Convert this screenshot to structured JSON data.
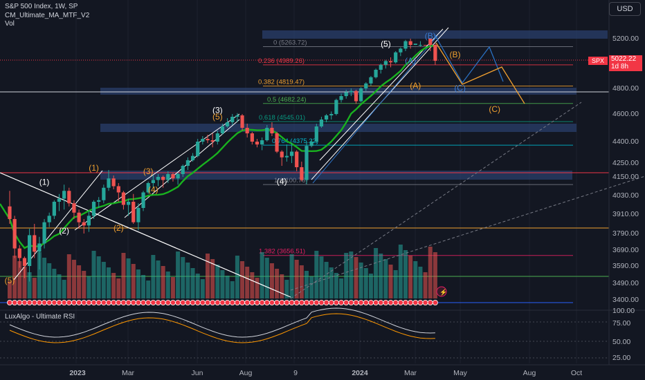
{
  "header": {
    "symbol_line": "S&P 500 Index, 1W, SP",
    "indicator_1": "CM_Ultimate_MA_MTF_V2",
    "indicator_2": "Vol",
    "currency": "USD"
  },
  "rsi_panel": {
    "title": "LuxAlgo - Ultimate RSI"
  },
  "price_tag": {
    "symbol": "SPX",
    "price": "5022.22",
    "countdown": "1d 8h"
  },
  "colors": {
    "background": "#131722",
    "bull": "#26a69a",
    "bear": "#ef5350",
    "ma": "#19b21f",
    "zone": "#2a3f6b",
    "orange": "#f0a030",
    "blue": "#2a6fc0"
  },
  "chart_data": {
    "type": "candlestick",
    "price_axis": {
      "ticks": [
        5200.0,
        5000.0,
        4800.0,
        4600.0,
        4400.0,
        4250.0,
        4150.0,
        4030.0,
        3910.0,
        3790.0,
        3690.0,
        3590.0,
        3490.0,
        3400.0
      ],
      "labels": [
        "5200.00",
        "4800.00",
        "4600.00",
        "4400.00",
        "4250.00",
        "4150.00",
        "4030.00",
        "3910.00",
        "3790.00",
        "3690.00",
        "3590.00",
        "3490.00",
        "3400.00"
      ]
    },
    "time_axis": [
      "2023",
      "Mar",
      "Jun",
      "Aug",
      "9",
      "2024",
      "Mar",
      "May",
      "Aug",
      "Oct"
    ],
    "fib_levels": [
      {
        "label": "0 (5263.72)",
        "value": 5263.72
      },
      {
        "label": "0.236 (4989.26)",
        "value": 4989.26
      },
      {
        "label": "0.382 (4819.47)",
        "value": 4819.47
      },
      {
        "label": "0.5 (4682.24)",
        "value": 4682.24
      },
      {
        "label": "0.618 (4545.01)",
        "value": 4545.01
      },
      {
        "label": "0.764 (4375.22)",
        "value": 4375.22
      },
      {
        "label": "1 (4100.76)",
        "value": 4100.76
      },
      {
        "label": "1.382 (3656.51)",
        "value": 3656.51
      }
    ],
    "wave_labels": [
      {
        "text": "(5)",
        "date": "2022-10-10",
        "price": 3491,
        "color": "orange"
      },
      {
        "text": "(1)",
        "date": "2022-11-28",
        "price": 4100,
        "color": "white"
      },
      {
        "text": "(2)",
        "date": "2022-12-26",
        "price": 3790,
        "color": "white"
      },
      {
        "text": "(1)",
        "date": "2023-02-06",
        "price": 4195,
        "color": "orange"
      },
      {
        "text": "(2)",
        "date": "2023-03-13",
        "price": 3808,
        "color": "orange"
      },
      {
        "text": "(3)",
        "date": "2023-04-24",
        "price": 4170,
        "color": "orange"
      },
      {
        "text": "(4)",
        "date": "2023-05-01",
        "price": 4050,
        "color": "orange"
      },
      {
        "text": "(3)",
        "date": "2023-07-31",
        "price": 4607,
        "color": "white"
      },
      {
        "text": "(5)",
        "date": "2023-07-31",
        "price": 4560,
        "color": "orange"
      },
      {
        "text": "(4)",
        "date": "2023-10-30",
        "price": 4103,
        "color": "white"
      },
      {
        "text": "(5)",
        "date": "2024-03-25",
        "price": 5264,
        "color": "white"
      },
      {
        "text": "(A)",
        "date": "2024-04-29",
        "price": 5000,
        "color": "blue"
      },
      {
        "text": "(B)",
        "date": "2024-05-27",
        "price": 5200,
        "color": "blue"
      },
      {
        "text": "(C)",
        "date": "2024-07-08",
        "price": 4780,
        "color": "blue"
      },
      {
        "text": "(A)",
        "date": "2024-05-06",
        "price": 4800,
        "color": "orange"
      },
      {
        "text": "(B)",
        "date": "2024-07-01",
        "price": 5050,
        "color": "orange"
      },
      {
        "text": "(C)",
        "date": "2024-08-26",
        "price": 4615,
        "color": "orange"
      }
    ],
    "candles": [
      {
        "o": 3960,
        "h": 4060,
        "l": 3850,
        "c": 3880
      },
      {
        "o": 3880,
        "h": 3900,
        "l": 3640,
        "c": 3700
      },
      {
        "o": 3700,
        "h": 3720,
        "l": 3580,
        "c": 3640
      },
      {
        "o": 3640,
        "h": 3650,
        "l": 3520,
        "c": 3590
      },
      {
        "o": 3590,
        "h": 3820,
        "l": 3500,
        "c": 3780
      },
      {
        "o": 3780,
        "h": 3850,
        "l": 3640,
        "c": 3680
      },
      {
        "o": 3680,
        "h": 3770,
        "l": 3570,
        "c": 3730
      },
      {
        "o": 3730,
        "h": 3880,
        "l": 3700,
        "c": 3860
      },
      {
        "o": 3860,
        "h": 3920,
        "l": 3830,
        "c": 3900
      },
      {
        "o": 3900,
        "h": 4000,
        "l": 3880,
        "c": 3990
      },
      {
        "o": 3990,
        "h": 4040,
        "l": 3930,
        "c": 4010
      },
      {
        "o": 4010,
        "h": 4100,
        "l": 3940,
        "c": 4060
      },
      {
        "o": 4060,
        "h": 4080,
        "l": 3960,
        "c": 3980
      },
      {
        "o": 3980,
        "h": 4000,
        "l": 3880,
        "c": 3920
      },
      {
        "o": 3920,
        "h": 3940,
        "l": 3820,
        "c": 3860
      },
      {
        "o": 3860,
        "h": 3880,
        "l": 3790,
        "c": 3840
      },
      {
        "o": 3840,
        "h": 3930,
        "l": 3800,
        "c": 3900
      },
      {
        "o": 3900,
        "h": 4000,
        "l": 3880,
        "c": 3990
      },
      {
        "o": 3990,
        "h": 4020,
        "l": 3950,
        "c": 4000
      },
      {
        "o": 4000,
        "h": 4100,
        "l": 3980,
        "c": 4080
      },
      {
        "o": 4080,
        "h": 4200,
        "l": 4060,
        "c": 4140
      },
      {
        "o": 4140,
        "h": 4160,
        "l": 4070,
        "c": 4090
      },
      {
        "o": 4090,
        "h": 4110,
        "l": 3990,
        "c": 4050
      },
      {
        "o": 4050,
        "h": 4060,
        "l": 3940,
        "c": 3970
      },
      {
        "o": 3970,
        "h": 4010,
        "l": 3900,
        "c": 3990
      },
      {
        "o": 3990,
        "h": 4040,
        "l": 3850,
        "c": 3860
      },
      {
        "o": 3860,
        "h": 3980,
        "l": 3810,
        "c": 3950
      },
      {
        "o": 3950,
        "h": 4060,
        "l": 3930,
        "c": 4050
      },
      {
        "o": 4050,
        "h": 4120,
        "l": 4040,
        "c": 4110
      },
      {
        "o": 4110,
        "h": 4160,
        "l": 4080,
        "c": 4130
      },
      {
        "o": 4130,
        "h": 4170,
        "l": 4090,
        "c": 4150
      },
      {
        "o": 4150,
        "h": 4160,
        "l": 4080,
        "c": 4130
      },
      {
        "o": 4130,
        "h": 4190,
        "l": 4110,
        "c": 4170
      },
      {
        "o": 4170,
        "h": 4180,
        "l": 4120,
        "c": 4140
      },
      {
        "o": 4140,
        "h": 4180,
        "l": 4100,
        "c": 4170
      },
      {
        "o": 4170,
        "h": 4240,
        "l": 4150,
        "c": 4230
      },
      {
        "o": 4230,
        "h": 4290,
        "l": 4200,
        "c": 4270
      },
      {
        "o": 4270,
        "h": 4320,
        "l": 4260,
        "c": 4300
      },
      {
        "o": 4300,
        "h": 4420,
        "l": 4290,
        "c": 4400
      },
      {
        "o": 4400,
        "h": 4440,
        "l": 4380,
        "c": 4420
      },
      {
        "o": 4420,
        "h": 4450,
        "l": 4390,
        "c": 4410
      },
      {
        "o": 4410,
        "h": 4460,
        "l": 4360,
        "c": 4400
      },
      {
        "o": 4400,
        "h": 4480,
        "l": 4380,
        "c": 4460
      },
      {
        "o": 4460,
        "h": 4530,
        "l": 4450,
        "c": 4510
      },
      {
        "o": 4510,
        "h": 4570,
        "l": 4500,
        "c": 4540
      },
      {
        "o": 4540,
        "h": 4600,
        "l": 4520,
        "c": 4580
      },
      {
        "o": 4580,
        "h": 4607,
        "l": 4540,
        "c": 4590
      },
      {
        "o": 4590,
        "h": 4600,
        "l": 4480,
        "c": 4500
      },
      {
        "o": 4500,
        "h": 4530,
        "l": 4430,
        "c": 4460
      },
      {
        "o": 4460,
        "h": 4470,
        "l": 4380,
        "c": 4400
      },
      {
        "o": 4400,
        "h": 4420,
        "l": 4360,
        "c": 4380
      },
      {
        "o": 4380,
        "h": 4430,
        "l": 4340,
        "c": 4410
      },
      {
        "o": 4410,
        "h": 4520,
        "l": 4400,
        "c": 4500
      },
      {
        "o": 4500,
        "h": 4540,
        "l": 4440,
        "c": 4460
      },
      {
        "o": 4460,
        "h": 4470,
        "l": 4320,
        "c": 4330
      },
      {
        "o": 4330,
        "h": 4340,
        "l": 4230,
        "c": 4290
      },
      {
        "o": 4290,
        "h": 4380,
        "l": 4260,
        "c": 4300
      },
      {
        "o": 4300,
        "h": 4390,
        "l": 4250,
        "c": 4330
      },
      {
        "o": 4330,
        "h": 4340,
        "l": 4190,
        "c": 4220
      },
      {
        "o": 4220,
        "h": 4260,
        "l": 4120,
        "c": 4130
      },
      {
        "o": 4130,
        "h": 4400,
        "l": 4103,
        "c": 4370
      },
      {
        "o": 4370,
        "h": 4420,
        "l": 4360,
        "c": 4400
      },
      {
        "o": 4400,
        "h": 4530,
        "l": 4390,
        "c": 4510
      },
      {
        "o": 4510,
        "h": 4580,
        "l": 4500,
        "c": 4560
      },
      {
        "o": 4560,
        "h": 4600,
        "l": 4540,
        "c": 4590
      },
      {
        "o": 4590,
        "h": 4620,
        "l": 4560,
        "c": 4600
      },
      {
        "o": 4600,
        "h": 4720,
        "l": 4590,
        "c": 4710
      },
      {
        "o": 4710,
        "h": 4760,
        "l": 4690,
        "c": 4740
      },
      {
        "o": 4740,
        "h": 4790,
        "l": 4720,
        "c": 4770
      },
      {
        "o": 4770,
        "h": 4800,
        "l": 4740,
        "c": 4780
      },
      {
        "o": 4780,
        "h": 4790,
        "l": 4680,
        "c": 4700
      },
      {
        "o": 4700,
        "h": 4810,
        "l": 4690,
        "c": 4800
      },
      {
        "o": 4800,
        "h": 4850,
        "l": 4780,
        "c": 4840
      },
      {
        "o": 4840,
        "h": 4900,
        "l": 4820,
        "c": 4890
      },
      {
        "o": 4890,
        "h": 4960,
        "l": 4880,
        "c": 4950
      },
      {
        "o": 4950,
        "h": 5000,
        "l": 4920,
        "c": 4990
      },
      {
        "o": 4990,
        "h": 5030,
        "l": 4960,
        "c": 5020
      },
      {
        "o": 5020,
        "h": 5050,
        "l": 4970,
        "c": 5010
      },
      {
        "o": 5010,
        "h": 5100,
        "l": 5000,
        "c": 5090
      },
      {
        "o": 5090,
        "h": 5130,
        "l": 5060,
        "c": 5120
      },
      {
        "o": 5120,
        "h": 5190,
        "l": 5100,
        "c": 5180
      },
      {
        "o": 5180,
        "h": 5200,
        "l": 5120,
        "c": 5150
      },
      {
        "o": 5150,
        "h": 5260,
        "l": 5140,
        "c": 5240
      },
      {
        "o": 5240,
        "h": 5264,
        "l": 5220,
        "c": 5250
      },
      {
        "o": 5250,
        "h": 5260,
        "l": 5140,
        "c": 5200
      },
      {
        "o": 5200,
        "h": 5210,
        "l": 5100,
        "c": 5150
      },
      {
        "o": 5150,
        "h": 5160,
        "l": 4990,
        "c": 5022
      }
    ],
    "rsi_axis": [
      "100.00",
      "75.00",
      "50.00",
      "25.00"
    ]
  }
}
